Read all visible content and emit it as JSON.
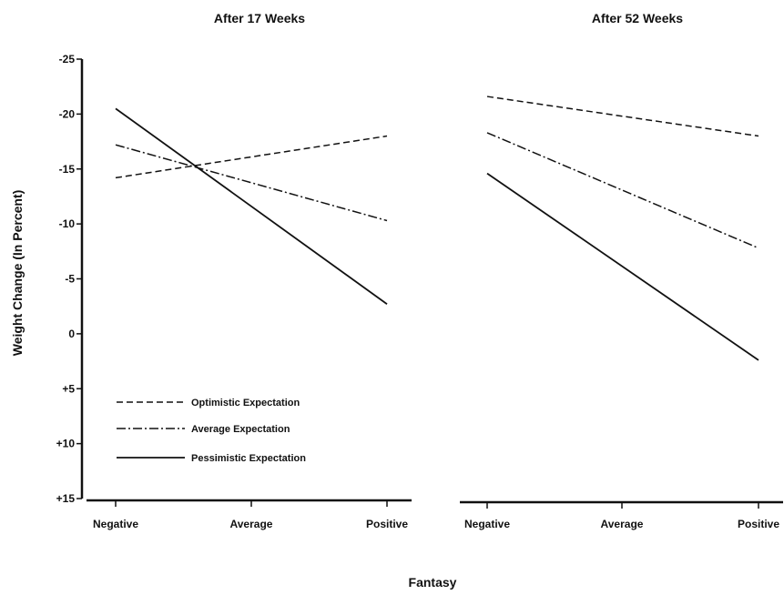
{
  "chart_data": [
    {
      "type": "line",
      "title": "After 17 Weeks",
      "ylabel": "Weight Change (In Percent)",
      "xlabel": "",
      "categories": [
        "Negative",
        "Average",
        "Positive"
      ],
      "y_ticks": [
        {
          "value": -25,
          "label": "-25"
        },
        {
          "value": -20,
          "label": "-20"
        },
        {
          "value": -15,
          "label": "-15"
        },
        {
          "value": -10,
          "label": "-10"
        },
        {
          "value": -5,
          "label": "-5"
        },
        {
          "value": 0,
          "label": "0"
        },
        {
          "value": 5,
          "label": "+5"
        },
        {
          "value": 10,
          "label": "+10"
        },
        {
          "value": 15,
          "label": "+15"
        }
      ],
      "ylim": [
        -25,
        15
      ],
      "y_inverted": true,
      "series": [
        {
          "name": "Optimistic Expectation",
          "style": "dashed",
          "values": [
            -14.2,
            null,
            -18.0
          ]
        },
        {
          "name": "Average Expectation",
          "style": "dash-dot",
          "values": [
            -17.2,
            null,
            -10.3
          ]
        },
        {
          "name": "Pessimistic Expectation",
          "style": "solid",
          "values": [
            -20.5,
            null,
            -2.7
          ]
        }
      ],
      "legend_position": "bottom-left"
    },
    {
      "type": "line",
      "title": "After 52 Weeks",
      "xlabel": "",
      "categories": [
        "Negative",
        "Average",
        "Positive"
      ],
      "ylim": [
        -25,
        15
      ],
      "y_inverted": true,
      "series": [
        {
          "style": "dashed",
          "values": [
            -21.6,
            null,
            -18.0
          ]
        },
        {
          "style": "dash-dot",
          "values": [
            -18.3,
            null,
            -7.8
          ]
        },
        {
          "style": "solid",
          "values": [
            -14.6,
            null,
            2.4
          ]
        }
      ]
    }
  ],
  "shared_xlabel": "Fantasy",
  "colors": {
    "ink": "#111111",
    "background": "#ffffff"
  }
}
